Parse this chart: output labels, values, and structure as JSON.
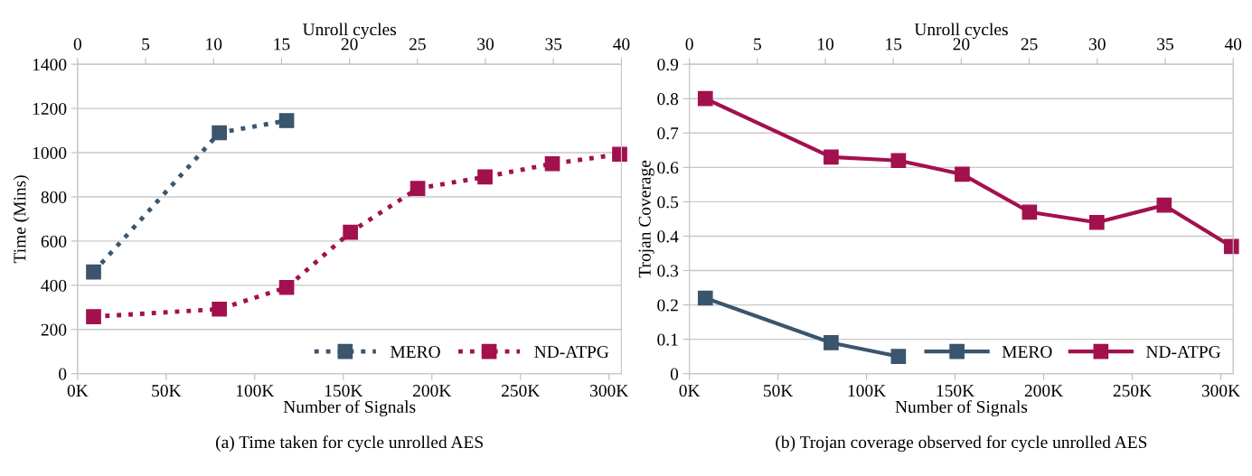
{
  "chart_data": [
    {
      "type": "line",
      "xlabel": "Number of Signals",
      "ylabel": "Time (Mins)",
      "x2label": "Unroll cycles",
      "xlim": [
        0,
        307000
      ],
      "xticks": [
        {
          "value": 0,
          "label": "0K"
        },
        {
          "value": 50000,
          "label": "50K"
        },
        {
          "value": 100000,
          "label": "100K"
        },
        {
          "value": 150000,
          "label": "150K"
        },
        {
          "value": 200000,
          "label": "200K"
        },
        {
          "value": 250000,
          "label": "250K"
        },
        {
          "value": 300000,
          "label": "300K"
        }
      ],
      "x2lim": [
        0,
        40
      ],
      "x2ticks": [
        0,
        5,
        10,
        15,
        20,
        25,
        30,
        35,
        40
      ],
      "ylim": [
        0,
        1400
      ],
      "yticks": [
        0,
        200,
        400,
        600,
        800,
        1000,
        1200,
        1400
      ],
      "grid": "y",
      "legend": "bottom right",
      "marker": "square",
      "line_style": "dotted",
      "annotations": [
        "(a) Time taken for cycle unrolled AES"
      ],
      "series": [
        {
          "name": "MERO",
          "color": "#3b556e",
          "x": [
            9000,
            80000,
            118000
          ],
          "values": [
            460,
            1090,
            1145
          ]
        },
        {
          "name": "ND-ATPG",
          "color": "#a3104e",
          "x": [
            9000,
            80000,
            118000,
            154000,
            192000,
            230000,
            268000,
            306000
          ],
          "values": [
            258,
            292,
            390,
            640,
            838,
            890,
            950,
            993
          ]
        }
      ]
    },
    {
      "type": "line",
      "xlabel": "Number of Signals",
      "ylabel": "Trojan Coverage",
      "x2label": "Unroll cycles",
      "xlim": [
        0,
        307000
      ],
      "xticks": [
        {
          "value": 0,
          "label": "0K"
        },
        {
          "value": 50000,
          "label": "50K"
        },
        {
          "value": 100000,
          "label": "100K"
        },
        {
          "value": 150000,
          "label": "150K"
        },
        {
          "value": 200000,
          "label": "200K"
        },
        {
          "value": 250000,
          "label": "250K"
        },
        {
          "value": 300000,
          "label": "300K"
        }
      ],
      "x2lim": [
        0,
        40
      ],
      "x2ticks": [
        0,
        5,
        10,
        15,
        20,
        25,
        30,
        35,
        40
      ],
      "ylim": [
        0,
        0.9
      ],
      "yticks": [
        0,
        0.1,
        0.2,
        0.3,
        0.4,
        0.5,
        0.6,
        0.7,
        0.8,
        0.9
      ],
      "grid": "y",
      "legend": "bottom right",
      "marker": "square",
      "line_style": "solid",
      "annotations": [
        "(b) Trojan coverage observed for cycle unrolled AES"
      ],
      "series": [
        {
          "name": "MERO",
          "color": "#3b556e",
          "x": [
            9000,
            80000,
            118000
          ],
          "values": [
            0.22,
            0.09,
            0.05
          ]
        },
        {
          "name": "ND-ATPG",
          "color": "#a3104e",
          "x": [
            9000,
            80000,
            118000,
            154000,
            192000,
            230000,
            268000,
            306000
          ],
          "values": [
            0.8,
            0.63,
            0.62,
            0.58,
            0.47,
            0.44,
            0.49,
            0.37
          ]
        }
      ]
    }
  ]
}
